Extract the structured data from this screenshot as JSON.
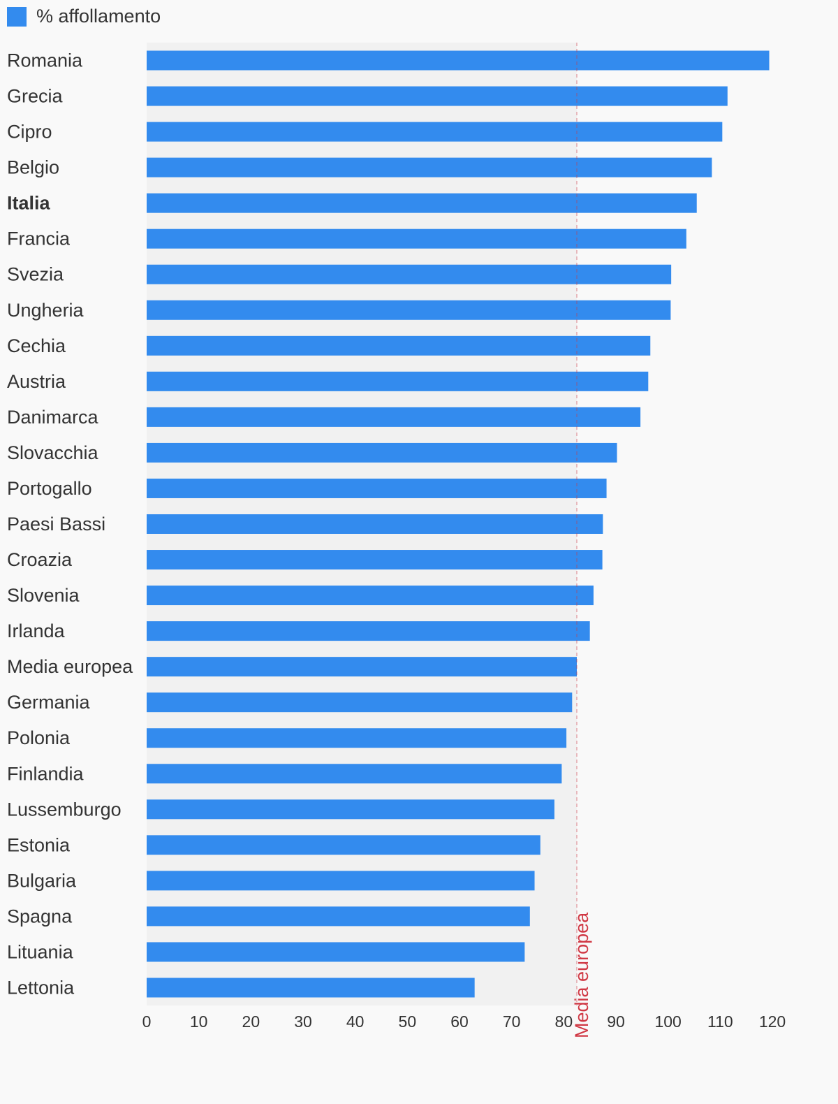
{
  "colors": {
    "bar": "#338BEE",
    "background": "#F9F9F9",
    "plot_background": "#F1F1F1",
    "reference_line": "#D03844",
    "text": "#333333"
  },
  "legend": {
    "label": "% affollamento"
  },
  "chart_data": {
    "type": "bar",
    "orientation": "horizontal",
    "categories": [
      "Romania",
      "Grecia",
      "Cipro",
      "Belgio",
      "Italia",
      "Francia",
      "Svezia",
      "Ungheria",
      "Cechia",
      "Austria",
      "Danimarca",
      "Slovacchia",
      "Portogallo",
      "Paesi Bassi",
      "Croazia",
      "Slovenia",
      "Irlanda",
      "Media europea",
      "Germania",
      "Polonia",
      "Finlandia",
      "Lussemburgo",
      "Estonia",
      "Bulgaria",
      "Spagna",
      "Lituania",
      "Lettonia"
    ],
    "highlighted_category": "Italia",
    "series": [
      {
        "name": "% affollamento",
        "values": [
          119.4,
          111.4,
          110.4,
          108.4,
          105.5,
          103.5,
          100.6,
          100.5,
          96.6,
          96.2,
          94.7,
          90.2,
          88.2,
          87.5,
          87.4,
          85.7,
          85.0,
          82.5,
          81.6,
          80.5,
          79.6,
          78.2,
          75.5,
          74.4,
          73.5,
          72.5,
          62.9
        ]
      }
    ],
    "reference_line": {
      "value": 82.5,
      "label": "Media europea"
    },
    "xlim": [
      0,
      120
    ],
    "xticks": [
      0,
      10,
      20,
      30,
      40,
      50,
      60,
      70,
      80,
      90,
      100,
      110,
      120
    ],
    "grid": false,
    "legend_position": "top-left"
  }
}
